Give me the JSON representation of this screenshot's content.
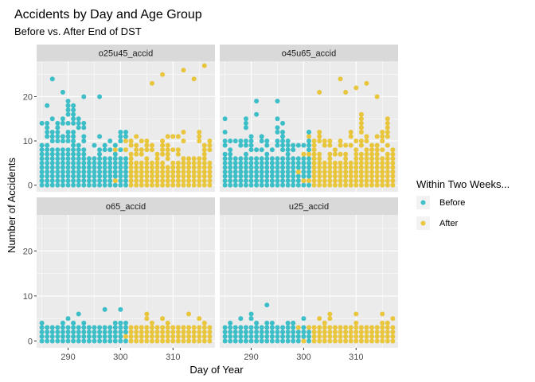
{
  "chart_data": {
    "type": "scatter",
    "title": "Accidents by Day and Age Group",
    "subtitle": "Before vs. After End of DST",
    "xlabel": "Day of Year",
    "ylabel": "Number of Accidents",
    "xlim": [
      284,
      318
    ],
    "ylim": [
      -1.5,
      28
    ],
    "x_ticks": [
      290,
      300,
      310
    ],
    "y_ticks": [
      0,
      10,
      20
    ],
    "legend": {
      "title": "Within Two Weeks...",
      "position": "right",
      "entries": [
        {
          "label": "Before",
          "color": "#00AFBB"
        },
        {
          "label": "After",
          "color": "#E7B800"
        }
      ]
    },
    "split_day": 301.5,
    "day_range": [
      285,
      317
    ],
    "panels": [
      {
        "label": "o25u45_accid",
        "max_count": [
          20,
          15,
          12,
          14
        ],
        "outliers": [
          [
            287,
            24
          ],
          [
            289,
            21
          ],
          [
            293,
            20
          ],
          [
            296,
            20
          ],
          [
            306,
            23
          ],
          [
            308,
            25
          ],
          [
            312,
            26
          ],
          [
            316,
            27
          ],
          [
            314,
            24
          ]
        ]
      },
      {
        "label": "o45u65_accid",
        "max_count": [
          17,
          15,
          14,
          17
        ],
        "outliers": [
          [
            291,
            19
          ],
          [
            295,
            19
          ],
          [
            303,
            21
          ],
          [
            308,
            21
          ],
          [
            310,
            22
          ],
          [
            312,
            23
          ],
          [
            307,
            24
          ],
          [
            314,
            20
          ]
        ]
      },
      {
        "label": "o65_accid",
        "max_count": [
          5,
          5,
          5,
          4
        ],
        "outliers": [
          [
            292,
            6
          ],
          [
            297,
            7
          ],
          [
            300,
            7
          ],
          [
            305,
            6
          ],
          [
            313,
            6
          ],
          [
            315,
            5
          ]
        ]
      },
      {
        "label": "u25_accid",
        "max_count": [
          5,
          5,
          5,
          4
        ],
        "outliers": [
          [
            293,
            8
          ],
          [
            290,
            6
          ],
          [
            305,
            6
          ],
          [
            310,
            6
          ],
          [
            315,
            6
          ],
          [
            317,
            5
          ]
        ]
      }
    ]
  },
  "colors": {
    "panel_bg": "#EBEBEB",
    "strip_bg": "#D9D9D9",
    "grid": "#FFFFFF",
    "before": "#00AFBB",
    "after": "#E7B800"
  }
}
